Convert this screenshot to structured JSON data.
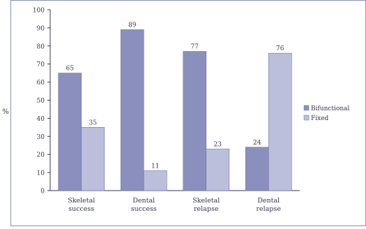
{
  "chart_data": {
    "type": "bar",
    "title": "",
    "xlabel": "",
    "ylabel": "%",
    "ylim": [
      0,
      100
    ],
    "yticks": [
      0,
      10,
      20,
      30,
      40,
      50,
      60,
      70,
      80,
      90,
      100
    ],
    "grid": false,
    "legend_position": "right",
    "categories": [
      "Skeletal\nsuccess",
      "Dental\nsuccess",
      "Skeletal\nrelapse",
      "Dental\nrelapse"
    ],
    "series": [
      {
        "name": "Bifunctional",
        "color": "#8a8fbd",
        "values": [
          65,
          89,
          77,
          24
        ]
      },
      {
        "name": "Fixed",
        "color": "#bcbfdc",
        "values": [
          35,
          11,
          23,
          76
        ]
      }
    ],
    "data_labels": [
      [
        "65",
        "89",
        "77",
        "24"
      ],
      [
        "35",
        "11",
        "23",
        "76"
      ]
    ]
  }
}
